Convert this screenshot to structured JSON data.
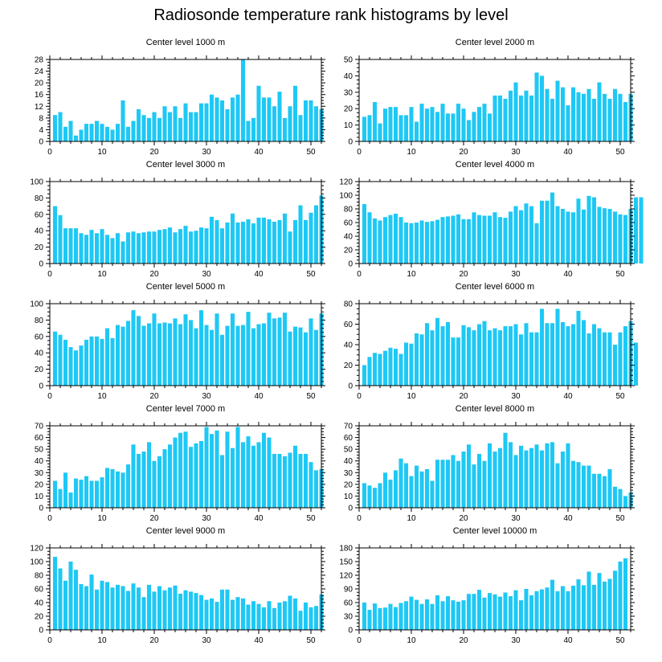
{
  "title": "Radiosonde temperature rank histograms by level",
  "bar_color": "#1ec8f5",
  "chart_data": [
    {
      "type": "bar",
      "title": "Center level 1000 m",
      "ylim": [
        0,
        28
      ],
      "yticks": [
        0,
        4,
        8,
        12,
        16,
        20,
        24,
        28
      ],
      "xlim": [
        0,
        52
      ],
      "xticks": [
        0,
        10,
        20,
        30,
        40,
        50
      ],
      "values": [
        9,
        10,
        5,
        7,
        2,
        4,
        6,
        6,
        7,
        6,
        5,
        4,
        6,
        14,
        5,
        7,
        11,
        9,
        8,
        10,
        8,
        12,
        10,
        12,
        8,
        13,
        10,
        10,
        13,
        13,
        16,
        15,
        14,
        11,
        15,
        16,
        28,
        7,
        8,
        19,
        15,
        15,
        12,
        17,
        8,
        12,
        19,
        9,
        14,
        14,
        12,
        11
      ]
    },
    {
      "type": "bar",
      "title": "Center level 2000 m",
      "ylim": [
        0,
        50
      ],
      "yticks": [
        0,
        10,
        20,
        30,
        40,
        50
      ],
      "xlim": [
        0,
        52
      ],
      "xticks": [
        0,
        10,
        20,
        30,
        40,
        50
      ],
      "values": [
        15,
        16,
        24,
        11,
        20,
        21,
        21,
        16,
        16,
        21,
        12,
        23,
        20,
        21,
        18,
        23,
        17,
        17,
        23,
        20,
        13,
        18,
        21,
        23,
        17,
        28,
        28,
        26,
        31,
        36,
        28,
        31,
        28,
        42,
        40,
        32,
        26,
        37,
        33,
        22,
        33,
        30,
        29,
        32,
        26,
        36,
        29,
        26,
        32,
        29,
        24,
        29
      ]
    },
    {
      "type": "bar",
      "title": "Center level 3000 m",
      "ylim": [
        0,
        100
      ],
      "yticks": [
        0,
        20,
        40,
        60,
        80,
        100
      ],
      "xlim": [
        0,
        52
      ],
      "xticks": [
        0,
        10,
        20,
        30,
        40,
        50
      ],
      "values": [
        70,
        59,
        43,
        43,
        43,
        37,
        35,
        41,
        37,
        42,
        35,
        31,
        37,
        27,
        38,
        39,
        37,
        38,
        39,
        39,
        41,
        42,
        44,
        38,
        42,
        46,
        39,
        40,
        44,
        43,
        57,
        53,
        43,
        50,
        61,
        50,
        51,
        54,
        49,
        56,
        56,
        54,
        51,
        53,
        61,
        39,
        53,
        71,
        53,
        62,
        71,
        83
      ]
    },
    {
      "type": "bar",
      "title": "Center level 4000 m",
      "ylim": [
        0,
        120
      ],
      "yticks": [
        0,
        20,
        40,
        60,
        80,
        100,
        120
      ],
      "xlim": [
        0,
        52
      ],
      "xticks": [
        0,
        10,
        20,
        30,
        40,
        50
      ],
      "values": [
        87,
        75,
        66,
        63,
        68,
        71,
        73,
        68,
        60,
        59,
        60,
        63,
        61,
        62,
        64,
        68,
        69,
        70,
        72,
        65,
        65,
        75,
        71,
        70,
        70,
        75,
        68,
        67,
        76,
        84,
        78,
        88,
        84,
        59,
        92,
        92,
        104,
        84,
        80,
        76,
        75,
        95,
        79,
        99,
        97,
        83,
        81,
        80,
        76,
        72,
        71,
        80,
        97,
        97
      ]
    },
    {
      "type": "bar",
      "title": "Center level 5000 m",
      "ylim": [
        0,
        100
      ],
      "yticks": [
        0,
        20,
        40,
        60,
        80,
        100
      ],
      "xlim": [
        0,
        52
      ],
      "xticks": [
        0,
        10,
        20,
        30,
        40,
        50
      ],
      "values": [
        66,
        62,
        56,
        47,
        43,
        49,
        56,
        60,
        60,
        57,
        70,
        58,
        74,
        72,
        79,
        92,
        85,
        73,
        76,
        88,
        76,
        77,
        76,
        82,
        75,
        87,
        80,
        70,
        92,
        74,
        68,
        88,
        62,
        73,
        88,
        73,
        74,
        90,
        70,
        75,
        76,
        89,
        82,
        83,
        89,
        66,
        72,
        71,
        65,
        82,
        68,
        88
      ]
    },
    {
      "type": "bar",
      "title": "Center level 6000 m",
      "ylim": [
        0,
        80
      ],
      "yticks": [
        0,
        20,
        40,
        60,
        80
      ],
      "xlim": [
        0,
        52
      ],
      "xticks": [
        0,
        10,
        20,
        30,
        40,
        50
      ],
      "values": [
        20,
        28,
        32,
        31,
        34,
        37,
        36,
        31,
        42,
        41,
        51,
        50,
        61,
        54,
        66,
        58,
        62,
        47,
        47,
        59,
        57,
        54,
        60,
        63,
        54,
        56,
        54,
        58,
        58,
        60,
        50,
        61,
        52,
        52,
        75,
        61,
        61,
        75,
        62,
        58,
        60,
        73,
        64,
        51,
        60,
        56,
        52,
        52,
        40,
        52,
        58,
        63,
        42
      ]
    },
    {
      "type": "bar",
      "title": "Center level 7000 m",
      "ylim": [
        0,
        70
      ],
      "yticks": [
        0,
        10,
        20,
        30,
        40,
        50,
        60,
        70
      ],
      "xlim": [
        0,
        52
      ],
      "xticks": [
        0,
        10,
        20,
        30,
        40,
        50
      ],
      "values": [
        23,
        16,
        30,
        13,
        25,
        24,
        27,
        23,
        23,
        26,
        34,
        33,
        31,
        30,
        37,
        54,
        46,
        48,
        56,
        40,
        44,
        50,
        54,
        60,
        64,
        65,
        52,
        55,
        57,
        69,
        63,
        66,
        45,
        65,
        51,
        69,
        56,
        61,
        53,
        56,
        64,
        60,
        46,
        46,
        44,
        47,
        53,
        46,
        46,
        39,
        32,
        33
      ]
    },
    {
      "type": "bar",
      "title": "Center level 8000 m",
      "ylim": [
        0,
        70
      ],
      "yticks": [
        0,
        10,
        20,
        30,
        40,
        50,
        60,
        70
      ],
      "xlim": [
        0,
        52
      ],
      "xticks": [
        0,
        10,
        20,
        30,
        40,
        50
      ],
      "values": [
        21,
        19,
        17,
        21,
        30,
        24,
        32,
        42,
        38,
        27,
        36,
        31,
        33,
        23,
        41,
        41,
        41,
        45,
        40,
        48,
        54,
        37,
        46,
        40,
        55,
        48,
        51,
        64,
        56,
        45,
        53,
        49,
        51,
        54,
        49,
        55,
        56,
        38,
        48,
        55,
        40,
        39,
        36,
        36,
        29,
        29,
        27,
        33,
        18,
        16,
        10,
        13
      ]
    },
    {
      "type": "bar",
      "title": "Center level 9000 m",
      "ylim": [
        0,
        120
      ],
      "yticks": [
        0,
        20,
        40,
        60,
        80,
        100,
        120
      ],
      "xlim": [
        0,
        52
      ],
      "xticks": [
        0,
        10,
        20,
        30,
        40,
        50
      ],
      "values": [
        107,
        90,
        72,
        100,
        88,
        67,
        64,
        81,
        59,
        72,
        70,
        62,
        66,
        64,
        57,
        68,
        62,
        48,
        66,
        56,
        64,
        58,
        62,
        65,
        53,
        58,
        56,
        54,
        51,
        44,
        46,
        41,
        59,
        59,
        44,
        48,
        46,
        37,
        42,
        38,
        33,
        42,
        32,
        40,
        42,
        50,
        46,
        28,
        40,
        33,
        35,
        52
      ]
    },
    {
      "type": "bar",
      "title": "Center level 10000 m",
      "ylim": [
        0,
        180
      ],
      "yticks": [
        0,
        30,
        60,
        90,
        120,
        150,
        180
      ],
      "xlim": [
        0,
        52
      ],
      "xticks": [
        0,
        10,
        20,
        30,
        40,
        50
      ],
      "values": [
        60,
        44,
        58,
        48,
        49,
        57,
        50,
        59,
        63,
        73,
        66,
        57,
        67,
        57,
        76,
        63,
        74,
        65,
        62,
        65,
        79,
        79,
        88,
        71,
        81,
        78,
        73,
        82,
        74,
        87,
        65,
        90,
        76,
        85,
        89,
        93,
        110,
        85,
        96,
        85,
        97,
        111,
        98,
        128,
        99,
        125,
        106,
        112,
        130,
        150,
        157,
        0
      ]
    }
  ]
}
